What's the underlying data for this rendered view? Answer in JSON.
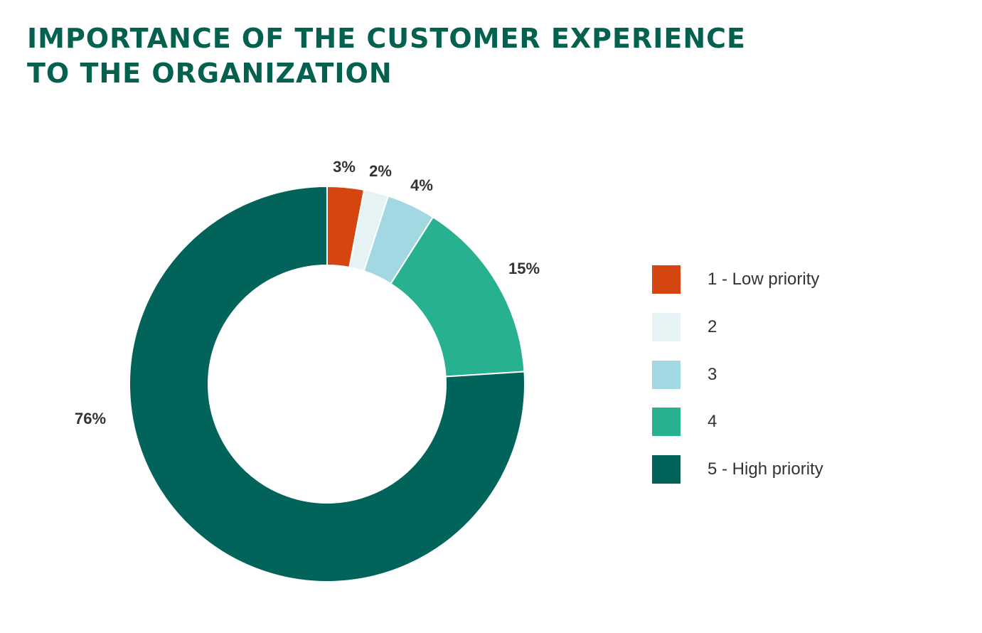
{
  "chart_data": {
    "type": "pie",
    "variant": "donut",
    "title": [
      "IMPORTANCE OF THE CUSTOMER EXPERIENCE",
      "TO THE ORGANIZATION"
    ],
    "categories": [
      "1 - Low priority",
      "2",
      "3",
      "4",
      "5 - High priority"
    ],
    "values": [
      3,
      2,
      4,
      15,
      76
    ],
    "data_labels": [
      "3%",
      "2%",
      "4%",
      "15%",
      "76%"
    ],
    "colors": [
      "#d4450f",
      "#e6f3f4",
      "#a2d8e2",
      "#28b190",
      "#02635a"
    ],
    "legend_position": "right"
  }
}
